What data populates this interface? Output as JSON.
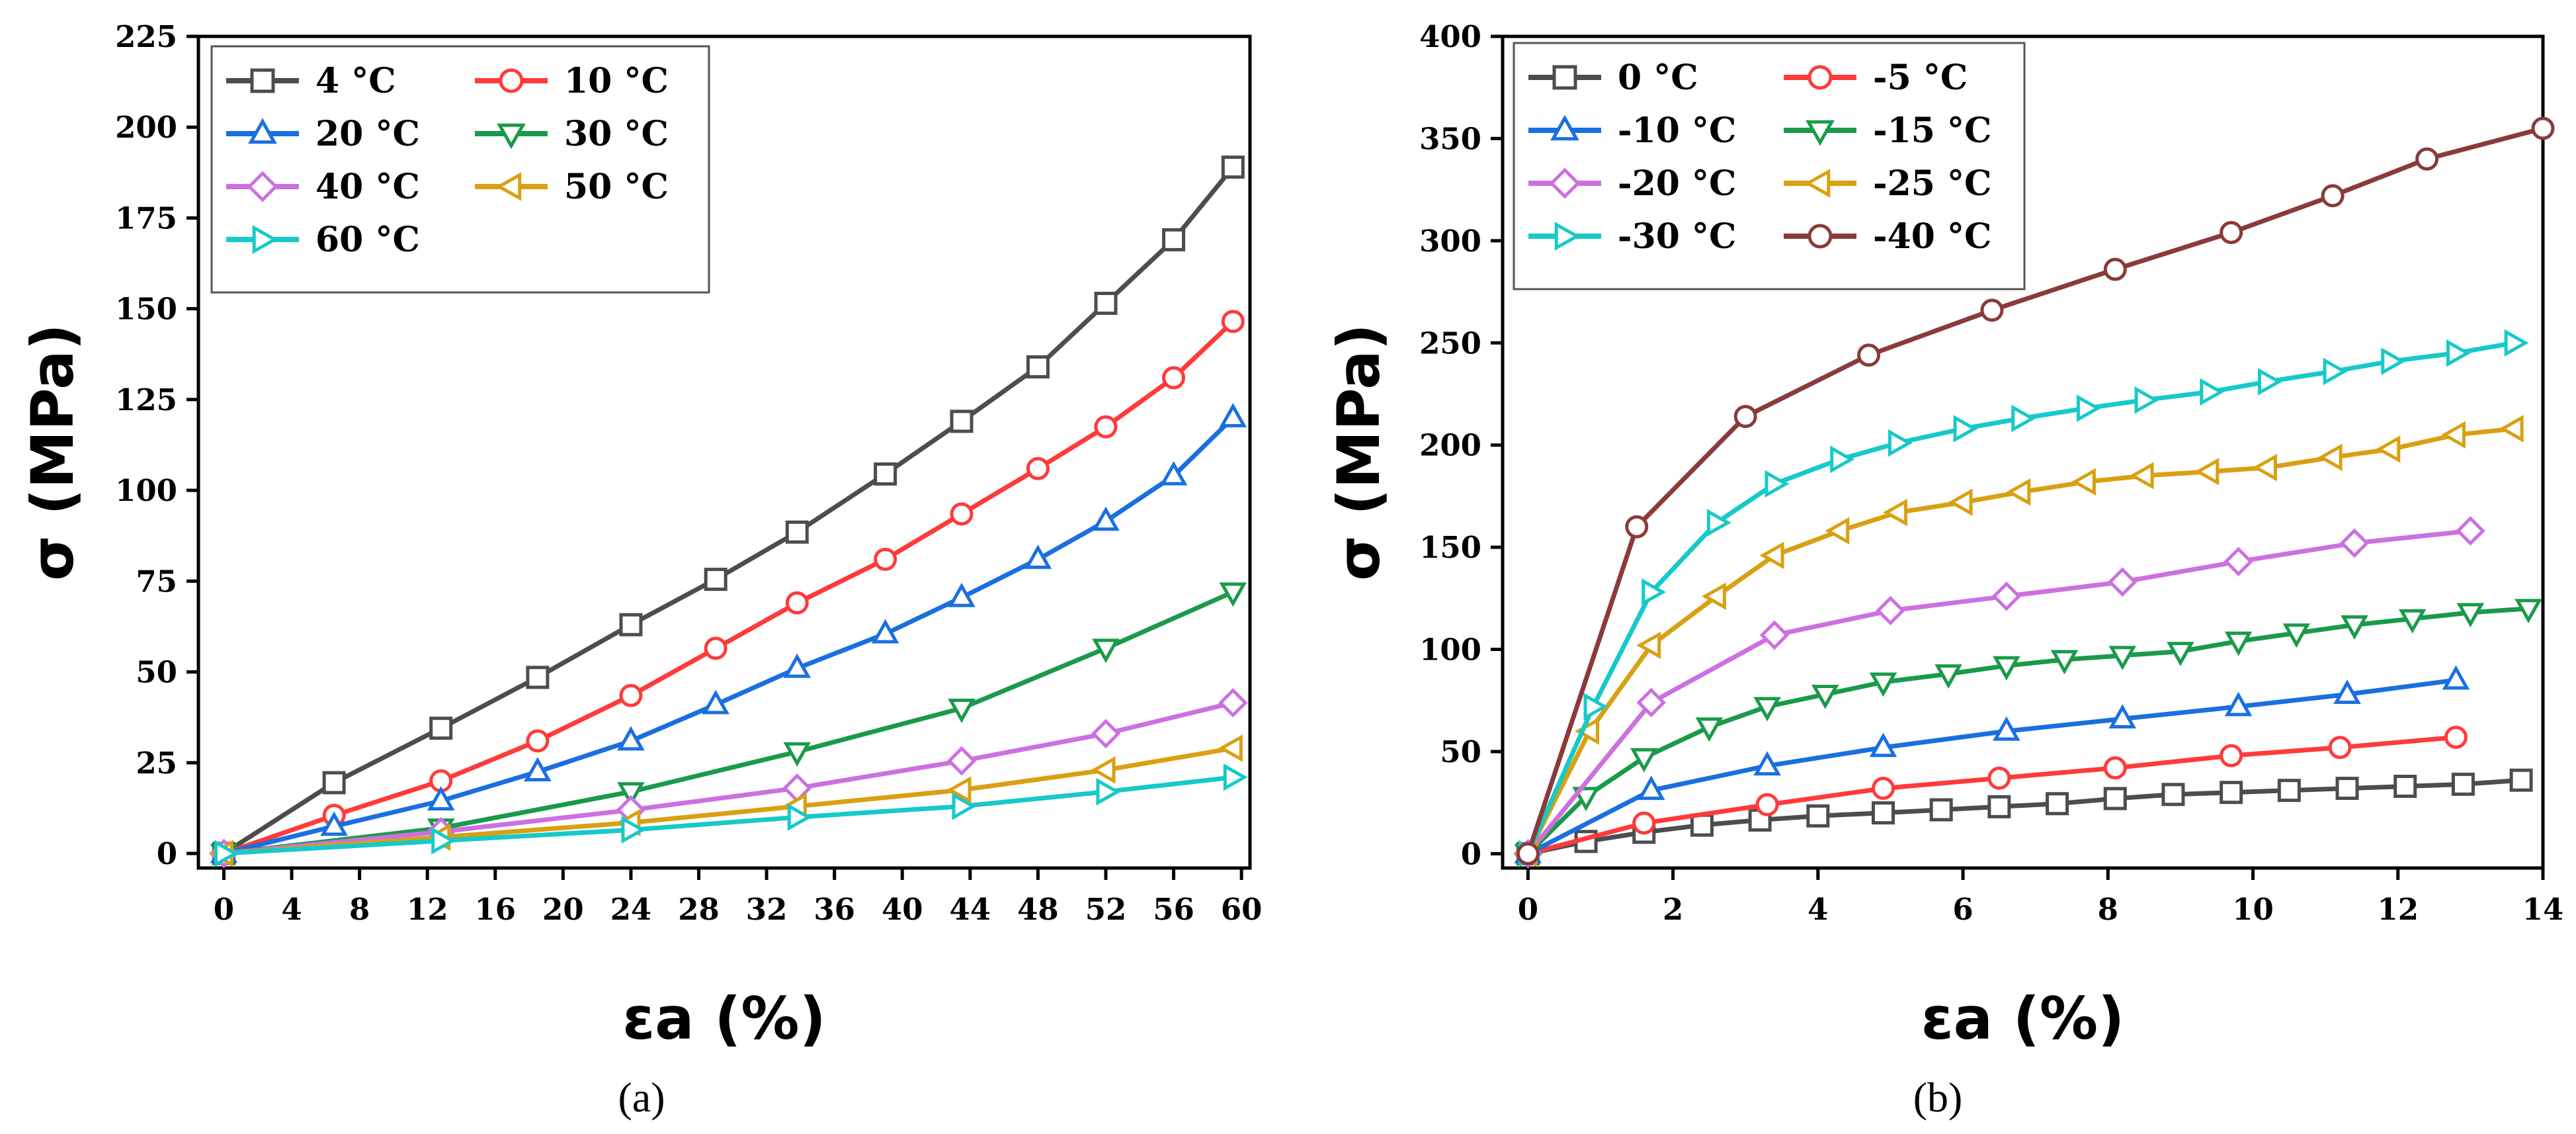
{
  "chart_data": [
    {
      "type": "line",
      "panel_label": "(a)",
      "xlabel": "εa (%)",
      "ylabel": "σ (MPa)",
      "xlim": [
        -1.5,
        60.5
      ],
      "ylim": [
        -4,
        225
      ],
      "xticks": [
        0,
        4,
        8,
        12,
        16,
        20,
        24,
        28,
        32,
        36,
        40,
        44,
        48,
        52,
        56,
        60
      ],
      "yticks": [
        0,
        25,
        50,
        75,
        100,
        125,
        150,
        175,
        200,
        225
      ],
      "grid": false,
      "legend": "top-left",
      "legend_columns": 2,
      "series": [
        {
          "name": "4 °C",
          "color": "#4d4d4d",
          "marker": "square",
          "x": [
            0,
            6.5,
            12.8,
            18.5,
            24,
            29,
            33.8,
            39,
            43.5,
            48,
            52,
            56,
            59.5
          ],
          "y": [
            0,
            19.5,
            34.5,
            48.5,
            63,
            75.5,
            88.5,
            104.5,
            119,
            134,
            151.5,
            169,
            189
          ]
        },
        {
          "name": "10 °C",
          "color": "#ff3a3a",
          "marker": "circle",
          "x": [
            0,
            6.5,
            12.8,
            18.5,
            24,
            29,
            33.8,
            39,
            43.5,
            48,
            52,
            56,
            59.5
          ],
          "y": [
            0,
            10.5,
            20,
            31,
            43.5,
            56.5,
            69,
            81,
            93.5,
            106,
            117.5,
            131,
            146.5
          ]
        },
        {
          "name": "20 °C",
          "color": "#1a6fe0",
          "marker": "triangle-up",
          "x": [
            0,
            6.5,
            12.8,
            18.5,
            24,
            29,
            33.8,
            39,
            43.5,
            48,
            52,
            56,
            59.5
          ],
          "y": [
            0,
            7.5,
            14.5,
            22.5,
            31,
            41,
            51,
            60.5,
            70.5,
            81,
            91.5,
            104,
            120
          ]
        },
        {
          "name": "30 °C",
          "color": "#1a9a4a",
          "marker": "triangle-down",
          "x": [
            0,
            12.8,
            24,
            33.8,
            43.5,
            52,
            59.5
          ],
          "y": [
            0,
            7,
            17,
            28,
            40,
            56.5,
            72
          ]
        },
        {
          "name": "40 °C",
          "color": "#cc70e0",
          "marker": "diamond",
          "x": [
            0,
            12.8,
            24,
            33.8,
            43.5,
            52,
            59.5
          ],
          "y": [
            0,
            6,
            12,
            18,
            25.5,
            33,
            41.5
          ]
        },
        {
          "name": "50 °C",
          "color": "#d9a012",
          "marker": "triangle-left",
          "x": [
            0,
            12.8,
            24,
            33.8,
            43.5,
            52,
            59.5
          ],
          "y": [
            0,
            4.5,
            8.5,
            13,
            17.5,
            23,
            29
          ]
        },
        {
          "name": "60 °C",
          "color": "#17c9c9",
          "marker": "triangle-right",
          "x": [
            0,
            12.8,
            24,
            33.8,
            43.5,
            52,
            59.5
          ],
          "y": [
            0,
            3.5,
            6.5,
            10,
            13,
            17,
            21
          ]
        }
      ]
    },
    {
      "type": "line",
      "panel_label": "(b)",
      "xlabel": "εa (%)",
      "ylabel": "σ (MPa)",
      "xlim": [
        -0.35,
        14
      ],
      "ylim": [
        -7,
        400
      ],
      "xticks": [
        0,
        2,
        4,
        6,
        8,
        10,
        12,
        14
      ],
      "yticks": [
        0,
        50,
        100,
        150,
        200,
        250,
        300,
        350,
        400
      ],
      "grid": false,
      "legend": "top-left",
      "legend_columns": 2,
      "series": [
        {
          "name": "0 °C",
          "color": "#4d4d4d",
          "marker": "square",
          "x": [
            0,
            0.8,
            1.6,
            2.4,
            3.2,
            4.0,
            4.9,
            5.7,
            6.5,
            7.3,
            8.1,
            8.9,
            9.7,
            10.5,
            11.3,
            12.1,
            12.9,
            13.7
          ],
          "y": [
            0,
            6,
            10.5,
            14,
            16.5,
            18.5,
            20,
            21.5,
            23,
            24.5,
            27,
            29,
            30,
            31,
            32,
            33,
            34,
            36
          ]
        },
        {
          "name": "-5 °C",
          "color": "#ff3a3a",
          "marker": "circle",
          "x": [
            0,
            1.6,
            3.3,
            4.9,
            6.5,
            8.1,
            9.7,
            11.2,
            12.8
          ],
          "y": [
            0,
            15,
            24,
            32,
            37,
            42,
            48,
            52,
            57
          ]
        },
        {
          "name": "-10 °C",
          "color": "#1a6fe0",
          "marker": "triangle-up",
          "x": [
            0,
            1.7,
            3.3,
            4.9,
            6.6,
            8.2,
            9.8,
            11.3,
            12.8
          ],
          "y": [
            0,
            31,
            43,
            52,
            60,
            66,
            72,
            78,
            85
          ]
        },
        {
          "name": "-15 °C",
          "color": "#1a9a4a",
          "marker": "triangle-down",
          "x": [
            0,
            0.8,
            1.6,
            2.5,
            3.3,
            4.1,
            4.9,
            5.8,
            6.6,
            7.4,
            8.2,
            9.0,
            9.8,
            10.6,
            11.4,
            12.2,
            13.0,
            13.8
          ],
          "y": [
            0,
            28,
            47,
            62,
            72,
            78,
            84,
            88,
            92,
            95,
            97,
            99,
            104,
            108,
            112,
            115,
            118,
            120
          ]
        },
        {
          "name": "-20 °C",
          "color": "#cc70e0",
          "marker": "diamond",
          "x": [
            0,
            1.7,
            3.4,
            5.0,
            6.6,
            8.2,
            9.8,
            11.4,
            13.0
          ],
          "y": [
            0,
            74,
            107,
            119,
            126,
            133,
            143,
            152,
            158
          ]
        },
        {
          "name": "-25 °C",
          "color": "#d9a012",
          "marker": "triangle-left",
          "x": [
            0,
            0.85,
            1.7,
            2.6,
            3.4,
            4.3,
            5.1,
            6.0,
            6.8,
            7.7,
            8.5,
            9.4,
            10.2,
            11.1,
            11.9,
            12.8,
            13.6
          ],
          "y": [
            0,
            60,
            102,
            126,
            146,
            158,
            167,
            172,
            177,
            182,
            185,
            187,
            189,
            194,
            198,
            205,
            208
          ]
        },
        {
          "name": "-30 °C",
          "color": "#17c9c9",
          "marker": "triangle-right",
          "x": [
            0,
            0.9,
            1.7,
            2.6,
            3.4,
            4.3,
            5.1,
            6.0,
            6.8,
            7.7,
            8.5,
            9.4,
            10.2,
            11.1,
            11.9,
            12.8,
            13.6
          ],
          "y": [
            0,
            72,
            128,
            162,
            181,
            193,
            201,
            208,
            213,
            218,
            222,
            226,
            231,
            236,
            241,
            245,
            250
          ]
        },
        {
          "name": "-40 °C",
          "color": "#8b3a3a",
          "marker": "circle",
          "x": [
            0,
            1.5,
            3.0,
            4.7,
            6.4,
            8.1,
            9.7,
            11.1,
            12.4,
            14.0
          ],
          "y": [
            0,
            160,
            214,
            244,
            266,
            286,
            304,
            322,
            340,
            355
          ]
        }
      ]
    }
  ]
}
